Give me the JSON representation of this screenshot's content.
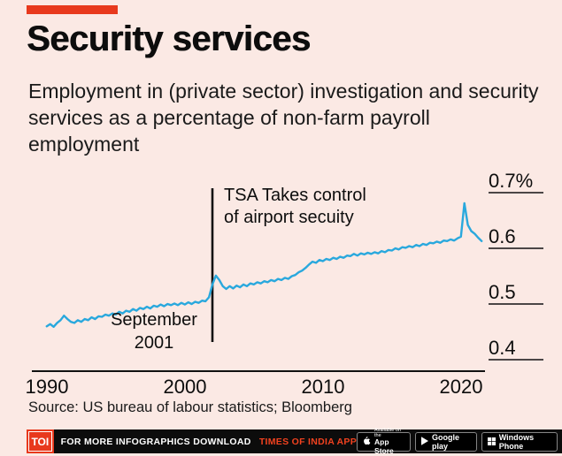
{
  "chart_data": {
    "type": "line",
    "title": "Security services",
    "subtitle": "Employment in (private sector) investigation and security services as a percentage of non-farm payroll employment",
    "xlabel": "",
    "ylabel": "",
    "xlim": [
      1989.5,
      2022
    ],
    "ylim": [
      0.4,
      0.7
    ],
    "grid": false,
    "legend": "none",
    "line_color": "#29a8dd",
    "x_ticks": [
      {
        "value": 1990,
        "label": "1990"
      },
      {
        "value": 2000,
        "label": "2000"
      },
      {
        "value": 2010,
        "label": "2010"
      },
      {
        "value": 2020,
        "label": "2020"
      }
    ],
    "y_ticks": [
      {
        "value": 0.7,
        "label": "0.7%"
      },
      {
        "value": 0.6,
        "label": "0.6"
      },
      {
        "value": 0.5,
        "label": "0.5"
      },
      {
        "value": 0.4,
        "label": "0.4"
      }
    ],
    "series": [
      {
        "name": "Investigation and security services share of non-farm payroll (%)",
        "x_start": 1990,
        "x_step": 0.25,
        "values": [
          0.46,
          0.464,
          0.459,
          0.466,
          0.471,
          0.479,
          0.473,
          0.468,
          0.466,
          0.471,
          0.468,
          0.473,
          0.471,
          0.476,
          0.473,
          0.478,
          0.477,
          0.481,
          0.479,
          0.483,
          0.481,
          0.486,
          0.483,
          0.488,
          0.486,
          0.491,
          0.488,
          0.493,
          0.491,
          0.495,
          0.492,
          0.497,
          0.495,
          0.499,
          0.496,
          0.5,
          0.498,
          0.501,
          0.498,
          0.502,
          0.499,
          0.503,
          0.5,
          0.504,
          0.502,
          0.506,
          0.505,
          0.512,
          0.535,
          0.551,
          0.543,
          0.532,
          0.527,
          0.532,
          0.528,
          0.533,
          0.53,
          0.535,
          0.532,
          0.537,
          0.535,
          0.539,
          0.537,
          0.541,
          0.539,
          0.543,
          0.541,
          0.545,
          0.543,
          0.547,
          0.545,
          0.55,
          0.552,
          0.557,
          0.56,
          0.565,
          0.571,
          0.576,
          0.574,
          0.579,
          0.577,
          0.581,
          0.579,
          0.583,
          0.581,
          0.585,
          0.583,
          0.587,
          0.586,
          0.59,
          0.587,
          0.591,
          0.589,
          0.592,
          0.59,
          0.593,
          0.591,
          0.595,
          0.593,
          0.597,
          0.596,
          0.6,
          0.598,
          0.602,
          0.601,
          0.604,
          0.602,
          0.606,
          0.604,
          0.608,
          0.606,
          0.61,
          0.609,
          0.612,
          0.61,
          0.614,
          0.613,
          0.616,
          0.614,
          0.618,
          0.621,
          0.681,
          0.642,
          0.631,
          0.626,
          0.619,
          0.613
        ]
      }
    ],
    "annotations": {
      "vline_x": 2002.0,
      "tsa_line1": "TSA Takes control",
      "tsa_line2": "of airport secuity",
      "sept_line1": "September",
      "sept_line2": "2001"
    }
  },
  "source": "Source: US bureau of labour statistics; Bloomberg",
  "footer": {
    "logo": "TOI",
    "text_white": "FOR MORE  INFOGRAPHICS DOWNLOAD",
    "text_red": "TIMES OF INDIA APP",
    "badges": [
      {
        "name": "app-store",
        "line1": "Available on the",
        "line2": "App Store"
      },
      {
        "name": "google-play",
        "line2": "Google play"
      },
      {
        "name": "windows-phone",
        "line2": "Windows Phone"
      }
    ]
  }
}
